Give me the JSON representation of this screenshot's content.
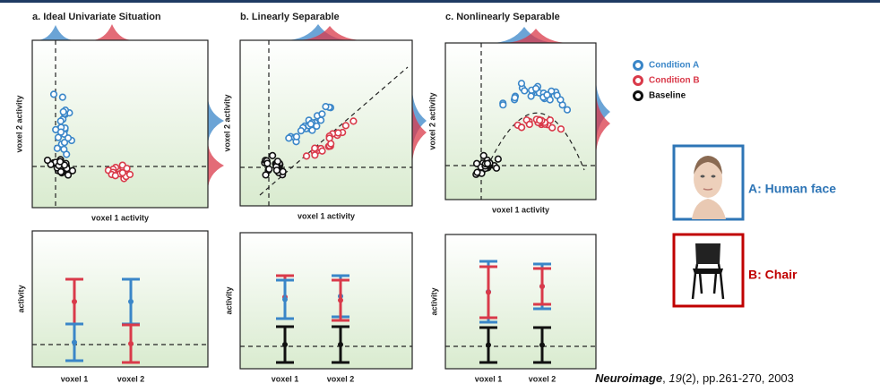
{
  "panels": [
    {
      "title": "a. Ideal Univariate Situation",
      "x_label": "voxel 1 activity",
      "y_label": "voxel 2 activity",
      "bar_y_label": "activity",
      "bar_x_labels": [
        "voxel 1",
        "voxel 2"
      ]
    },
    {
      "title": "b. Linearly Separable",
      "x_label": "voxel 1 activity",
      "y_label": "voxel 2 activity",
      "bar_y_label": "activity",
      "bar_x_labels": [
        "voxel 1",
        "voxel 2"
      ]
    },
    {
      "title": "c. Nonlinearly Separable",
      "x_label": "voxel 1 activity",
      "y_label": "voxel 2 activity",
      "bar_y_label": "activity",
      "bar_x_labels": [
        "voxel 1",
        "voxel 2"
      ]
    }
  ],
  "legend": [
    {
      "name": "Condition A",
      "color": "#3a86c8"
    },
    {
      "name": "Condition B",
      "color": "#d93a4a"
    },
    {
      "name": "Baseline",
      "color": "#111111"
    }
  ],
  "stimuli": [
    {
      "label": "A: Human face",
      "color": "#2e75b6"
    },
    {
      "label": "B: Chair",
      "color": "#c00000"
    }
  ],
  "citation": [
    "Neuroimage",
    ", ",
    "19",
    "(2), pp.261-270, 2003"
  ]
}
